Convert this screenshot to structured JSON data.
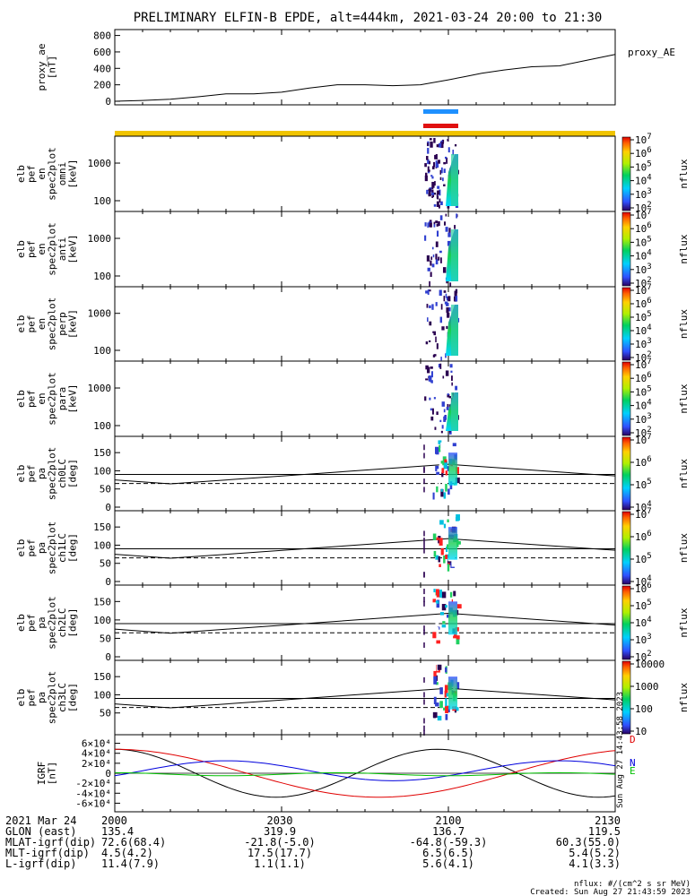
{
  "title": "PRELIMINARY ELFIN-B EPDE, alt=444km, 2021-03-24 20:00 to 21:30",
  "chart_data": [
    {
      "id": "ae",
      "type": "line",
      "ylabel": [
        "proxy_ae",
        "[nT]"
      ],
      "legend": "proxy_AE",
      "ylim": [
        0,
        850
      ],
      "yticks": [
        0,
        200,
        400,
        600,
        800
      ],
      "x_minutes": [
        0,
        5,
        10,
        15,
        20,
        25,
        30,
        35,
        40,
        45,
        50,
        55,
        60,
        63,
        66,
        70,
        75,
        80,
        85,
        90
      ],
      "y": [
        0,
        10,
        25,
        55,
        90,
        90,
        110,
        160,
        200,
        200,
        190,
        200,
        260,
        300,
        340,
        380,
        420,
        430,
        500,
        570
      ]
    },
    {
      "id": "omni",
      "type": "heatmap",
      "ylabel": [
        "elb",
        "pef",
        "en",
        "spec2plot",
        "omni",
        "[keV]"
      ],
      "scale": "log",
      "yticks": [
        100,
        1000
      ],
      "cbar_label": "nflux",
      "cbar_scale": "log",
      "cbar_ticks": [
        2,
        3,
        4,
        5,
        6,
        7
      ]
    },
    {
      "id": "anti",
      "type": "heatmap",
      "ylabel": [
        "elb",
        "pef",
        "en",
        "spec2plot",
        "anti",
        "[keV]"
      ],
      "scale": "log",
      "yticks": [
        100,
        1000
      ],
      "cbar_label": "nflux",
      "cbar_scale": "log",
      "cbar_ticks": [
        2,
        3,
        4,
        5,
        6,
        7
      ]
    },
    {
      "id": "perp",
      "type": "heatmap",
      "ylabel": [
        "elb",
        "pef",
        "en",
        "spec2plot",
        "perp",
        "[keV]"
      ],
      "scale": "log",
      "yticks": [
        100,
        1000
      ],
      "cbar_label": "nflux",
      "cbar_scale": "log",
      "cbar_ticks": [
        2,
        3,
        4,
        5,
        6,
        7
      ]
    },
    {
      "id": "para",
      "type": "heatmap",
      "ylabel": [
        "elb",
        "pef",
        "en",
        "spec2plot",
        "para",
        "[keV]"
      ],
      "scale": "log",
      "yticks": [
        100,
        1000
      ],
      "cbar_label": "nflux",
      "cbar_scale": "log",
      "cbar_ticks": [
        2,
        3,
        4,
        5,
        6,
        7
      ]
    },
    {
      "id": "ch0",
      "type": "heatmap",
      "ylabel": [
        "elb",
        "pef",
        "pa",
        "spec2plot",
        "ch0LC",
        "[deg]"
      ],
      "ylim": [
        0,
        180
      ],
      "yticks": [
        0,
        50,
        100,
        150
      ],
      "cbar_label": "nflux",
      "cbar_scale": "log",
      "cbar_ticks": [
        4,
        5,
        6,
        7
      ]
    },
    {
      "id": "ch1",
      "type": "heatmap",
      "ylabel": [
        "elb",
        "pef",
        "pa",
        "spec2plot",
        "ch1LC",
        "[deg]"
      ],
      "ylim": [
        0,
        180
      ],
      "yticks": [
        0,
        50,
        100,
        150
      ],
      "cbar_label": "nflux",
      "cbar_scale": "log",
      "cbar_ticks": [
        4,
        5,
        6,
        7
      ]
    },
    {
      "id": "ch2",
      "type": "heatmap",
      "ylabel": [
        "elb",
        "pef",
        "pa",
        "spec2plot",
        "ch2LC",
        "[deg]"
      ],
      "ylim": [
        0,
        180
      ],
      "yticks": [
        0,
        50,
        100,
        150
      ],
      "cbar_label": "nflux",
      "cbar_scale": "log",
      "cbar_ticks": [
        2,
        3,
        4,
        5,
        6
      ]
    },
    {
      "id": "ch3",
      "type": "heatmap",
      "ylabel": [
        "elb",
        "pef",
        "pa",
        "spec2plot",
        "ch3LC",
        "[deg]"
      ],
      "ylim": [
        0,
        180
      ],
      "yticks": [
        50,
        100,
        150
      ],
      "cbar_label": "nflux",
      "cbar_ticks_text": [
        "10",
        "100",
        "1000",
        "10000"
      ]
    },
    {
      "id": "igrf",
      "type": "line",
      "ylabel": [
        "IGRF",
        "[nT]"
      ],
      "ylim": [
        -70000,
        70000
      ],
      "ytick_values": [
        -60000,
        -40000,
        -20000,
        0,
        20000,
        40000,
        60000
      ],
      "ytick_labels": [
        "-6×10⁴",
        "-4×10⁴",
        "-2×10⁴",
        "0",
        "2×10⁴",
        "4×10⁴",
        "6×10⁴"
      ],
      "series": [
        {
          "name": "D",
          "color": "#e00000"
        },
        {
          "name": "N",
          "color": "#0000dd"
        },
        {
          "name": "E",
          "color": "#00c000"
        }
      ]
    }
  ],
  "losscone_deg": 65,
  "time_axis": {
    "ticks": [
      {
        "m": 0,
        "label": "2000"
      },
      {
        "m": 30,
        "label": "2030"
      },
      {
        "m": 60,
        "label": "2100"
      },
      {
        "m": 90,
        "label": "2130"
      }
    ]
  },
  "footer": {
    "rows": [
      {
        "label": "2021 Mar 24",
        "vals": [
          "2000",
          "2030",
          "2100",
          "2130"
        ]
      },
      {
        "label": "GLON (east)",
        "vals": [
          "135.4",
          "319.9",
          "136.7",
          "119.5"
        ]
      },
      {
        "label": "MLAT-igrf(dip)",
        "vals": [
          "72.6(68.4)",
          "-21.8(-5.0)",
          "-64.8(-59.3)",
          "60.3(55.0)"
        ]
      },
      {
        "label": "MLT-igrf(dip)",
        "vals": [
          "4.5(4.2)",
          "17.5(17.7)",
          "6.5(6.5)",
          "5.4(5.2)"
        ]
      },
      {
        "label": "L-igrf(dip)",
        "vals": [
          "11.4(7.9)",
          "1.1(1.1)",
          "5.6(4.1)",
          "4.1(3.3)"
        ]
      }
    ],
    "units": "nflux: #/(cm^2 s sr MeV)",
    "created": "Created: Sun Aug 27 21:43:59 2023",
    "side_stamp": "Sun Aug 27 14:43:58 2023"
  },
  "colors": {
    "sci_zone_bar_1": "#1e90ff",
    "sci_zone_bar_2": "#e01010",
    "status_bar": "#f0c400"
  }
}
